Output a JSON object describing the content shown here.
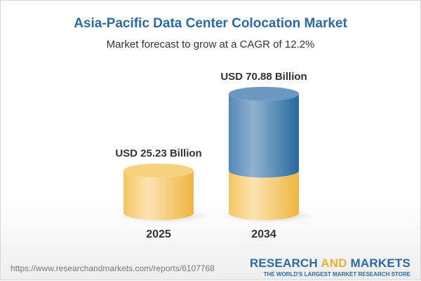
{
  "title": "Asia-Pacific Data Center Colocation Market",
  "subtitle": "Market forecast to grow at a CAGR of 12.2%",
  "chart_data": {
    "type": "bar",
    "style": "3d-cylinder",
    "categories": [
      "2025",
      "2034"
    ],
    "values": [
      25.23,
      70.88
    ],
    "data_labels": [
      "USD 25.23 Billion",
      "USD 70.88 Billion"
    ],
    "unit": "USD Billion",
    "colors": {
      "base": "#f2c45a",
      "growth": "#3f7eb3"
    }
  },
  "footer": {
    "url": "https://www.researchandmarkets.com/reports/6107768",
    "logo_part1": "RESEARCH ",
    "logo_part2": "AND",
    "logo_part3": " MARKETS",
    "tagline": "THE WORLD'S LARGEST MARKET RESEARCH STORE"
  }
}
